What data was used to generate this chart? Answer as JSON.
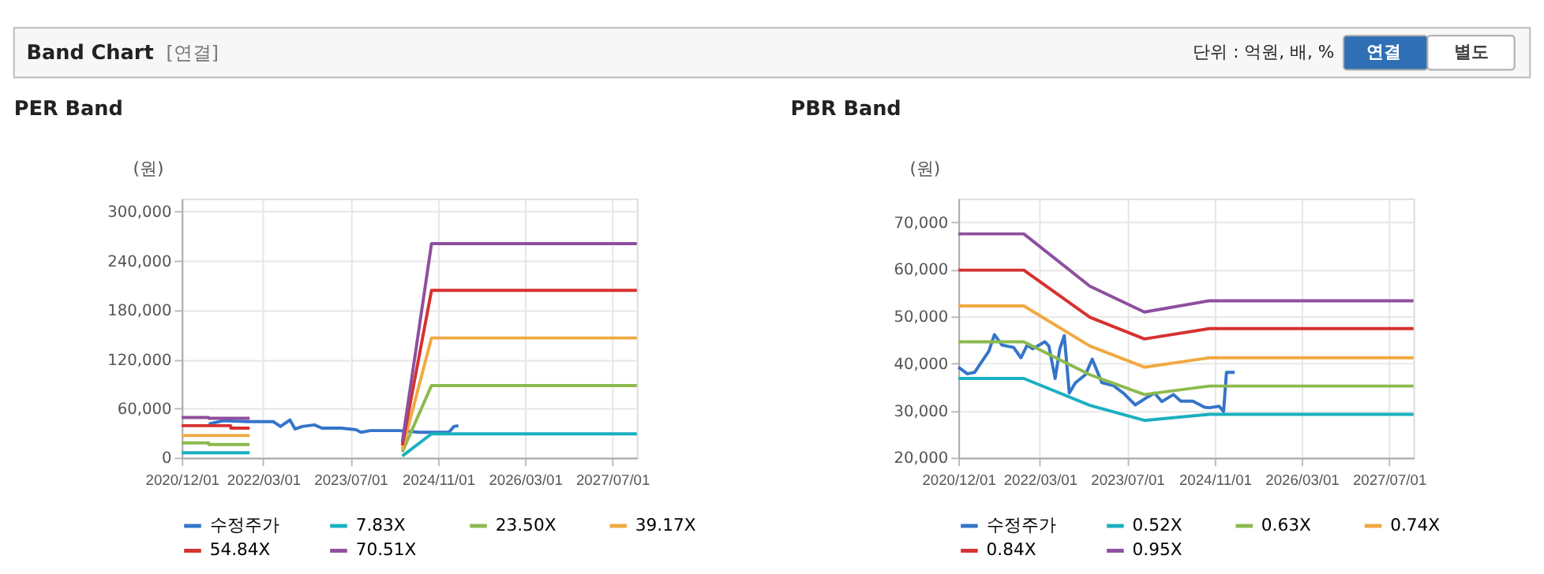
{
  "chart_data": [
    {
      "type": "line",
      "title": "PER Band",
      "ylabel": "(원)",
      "legend": "bottom",
      "grid": true,
      "line_style": "solid",
      "annotations": [
        "Band Chart",
        "[연결]",
        "단위 : 억원, 배, %",
        "연결",
        "별도"
      ],
      "xlim": [
        "2020-12-01",
        "2027-11-15"
      ],
      "ylim": [
        0,
        316000
      ],
      "xticks": [
        {
          "value": "2020-12-01",
          "label": "2020/12/01"
        },
        {
          "value": "2022-03-01",
          "label": "2022/03/01"
        },
        {
          "value": "2023-07-01",
          "label": "2023/07/01"
        },
        {
          "value": "2024-11-01",
          "label": "2024/11/01"
        },
        {
          "value": "2026-03-01",
          "label": "2026/03/01"
        },
        {
          "value": "2027-07-01",
          "label": "2027/07/01"
        }
      ],
      "yticks": [
        {
          "value": 0,
          "label": "0"
        },
        {
          "value": 60000,
          "label": "60,000"
        },
        {
          "value": 120000,
          "label": "120,000"
        },
        {
          "value": 180000,
          "label": "180,000"
        },
        {
          "value": 240000,
          "label": "240,000"
        },
        {
          "value": 300000,
          "label": "300,000"
        }
      ],
      "x": [
        "2020-12-01",
        "2021-04-30",
        "2021-05-01",
        "2021-08-31",
        "2021-09-01",
        "2021-12-15",
        "2022-01-01",
        "2024-04-15",
        "2024-09-25",
        "2027-11-15"
      ],
      "series": [
        {
          "name": "수정주가",
          "color": "#3574c9",
          "x": [
            "2021-05-01",
            "2021-07-20",
            "2021-12-10",
            "2022-04-25",
            "2022-06-05",
            "2022-07-28",
            "2022-08-25",
            "2022-10-05",
            "2022-12-12",
            "2023-01-22",
            "2023-05-10",
            "2023-08-01",
            "2023-08-28",
            "2023-10-20",
            "2024-04-01",
            "2024-07-18",
            "2024-12-31",
            "2025-01-28",
            "2025-02-22"
          ],
          "values": [
            41000,
            45000,
            44000,
            44000,
            38000,
            46000,
            35000,
            38000,
            40000,
            36000,
            36000,
            34000,
            31000,
            33000,
            33000,
            31000,
            31000,
            38000,
            39000
          ]
        },
        {
          "name": "7.83X",
          "color": "#1ab0c0",
          "values": [
            6000,
            6000,
            6000,
            6000,
            6000,
            6000,
            null,
            2000,
            29000,
            29000
          ]
        },
        {
          "name": "23.50X",
          "color": "#8cba4e",
          "values": [
            18000,
            18000,
            16000,
            16000,
            16000,
            16000,
            null,
            7000,
            88000,
            88000
          ]
        },
        {
          "name": "39.17X",
          "color": "#f0a941",
          "values": [
            27000,
            27000,
            27000,
            27000,
            27000,
            27000,
            null,
            10000,
            146000,
            146000
          ]
        },
        {
          "name": "54.84X",
          "color": "#d6312f",
          "values": [
            39000,
            39000,
            39000,
            39000,
            36000,
            36000,
            null,
            15000,
            204000,
            204000
          ]
        },
        {
          "name": "70.51X",
          "color": "#8e4f9e",
          "values": [
            49000,
            49000,
            48000,
            48000,
            48000,
            48000,
            null,
            19000,
            261000,
            261000
          ]
        }
      ]
    },
    {
      "type": "line",
      "title": "PBR Band",
      "ylabel": "(원)",
      "legend": "bottom",
      "grid": true,
      "line_style": "solid",
      "xlim": [
        "2020-12-01",
        "2027-11-15"
      ],
      "ylim": [
        20000,
        75000
      ],
      "xticks": [
        {
          "value": "2020-12-01",
          "label": "2020/12/01"
        },
        {
          "value": "2022-03-01",
          "label": "2022/03/01"
        },
        {
          "value": "2023-07-01",
          "label": "2023/07/01"
        },
        {
          "value": "2024-11-01",
          "label": "2024/11/01"
        },
        {
          "value": "2026-03-01",
          "label": "2026/03/01"
        },
        {
          "value": "2027-07-01",
          "label": "2027/07/01"
        }
      ],
      "yticks": [
        {
          "value": 20000,
          "label": "20,000"
        },
        {
          "value": 30000,
          "label": "30,000"
        },
        {
          "value": 40000,
          "label": "40,000"
        },
        {
          "value": 50000,
          "label": "50,000"
        },
        {
          "value": 60000,
          "label": "60,000"
        },
        {
          "value": 70000,
          "label": "70,000"
        }
      ],
      "x": [
        "2020-12-01",
        "2021-12-01",
        "2022-12-05",
        "2023-10-05",
        "2024-10-01",
        "2027-11-15"
      ],
      "series": [
        {
          "name": "수정주가",
          "color": "#3574c9",
          "x": [
            "2020-12-01",
            "2021-01-20",
            "2021-03-01",
            "2021-05-20",
            "2021-06-20",
            "2021-08-01",
            "2021-10-05",
            "2021-11-15",
            "2021-12-20",
            "2022-01-20",
            "2022-03-28",
            "2022-04-20",
            "2022-05-25",
            "2022-06-20",
            "2022-07-15",
            "2022-08-12",
            "2022-09-15",
            "2022-11-10",
            "2022-12-18",
            "2023-02-10",
            "2023-04-15",
            "2023-06-10",
            "2023-08-15",
            "2023-10-20",
            "2023-12-01",
            "2024-01-10",
            "2024-03-15",
            "2024-04-25",
            "2024-07-01",
            "2024-09-05",
            "2024-10-01",
            "2024-11-25",
            "2024-12-20",
            "2025-01-05",
            "2025-02-20"
          ],
          "values": [
            39200,
            37800,
            38100,
            42600,
            46100,
            43900,
            43400,
            41200,
            43900,
            43100,
            44600,
            43700,
            36800,
            43100,
            45900,
            33700,
            35900,
            37600,
            40900,
            35900,
            35300,
            33700,
            31200,
            32800,
            33700,
            31900,
            33400,
            32000,
            32000,
            30700,
            30600,
            30900,
            29800,
            38100,
            38100
          ]
        },
        {
          "name": "0.52X",
          "color": "#1ab0c0",
          "values": [
            36800,
            36800,
            31100,
            27900,
            29200,
            29200
          ]
        },
        {
          "name": "0.63X",
          "color": "#8cba4e",
          "values": [
            44600,
            44600,
            37600,
            33400,
            35200,
            35200
          ]
        },
        {
          "name": "0.74X",
          "color": "#f0a941",
          "values": [
            52200,
            52200,
            43700,
            39200,
            41200,
            41200
          ]
        },
        {
          "name": "0.84X",
          "color": "#d6312f",
          "values": [
            59800,
            59800,
            49800,
            45200,
            47400,
            47400
          ]
        },
        {
          "name": "0.95X",
          "color": "#8e4f9e",
          "values": [
            67500,
            67500,
            56400,
            50900,
            53300,
            53300
          ]
        }
      ]
    }
  ]
}
